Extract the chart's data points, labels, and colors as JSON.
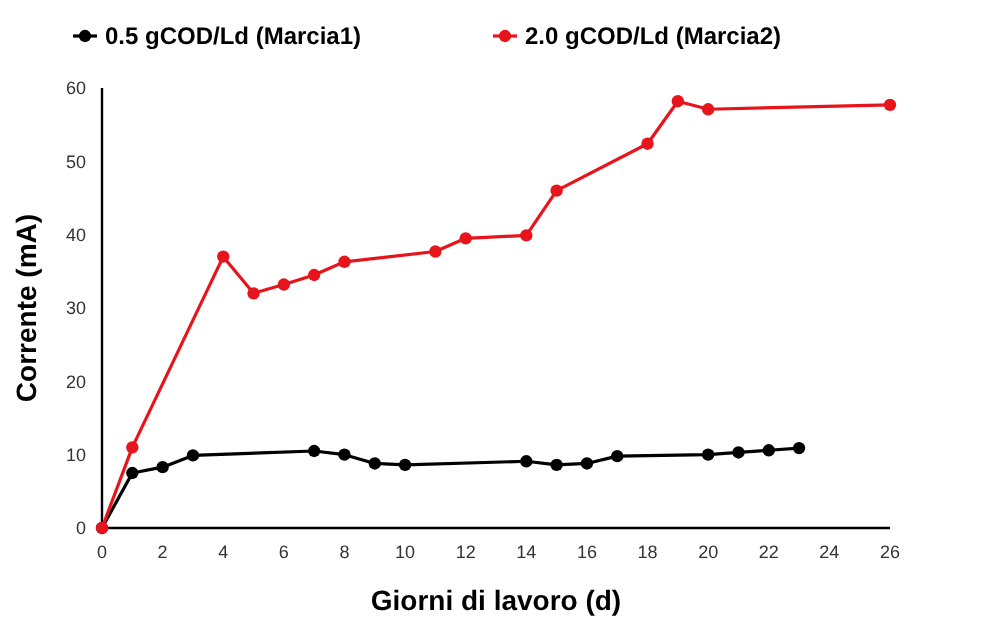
{
  "chart_data": {
    "type": "line",
    "xlabel": "Giorni di lavoro (d)",
    "ylabel": "Corrente (mA)",
    "xlim": [
      0,
      26
    ],
    "xticks": [
      0,
      2,
      4,
      6,
      8,
      10,
      12,
      14,
      16,
      18,
      20,
      22,
      24,
      26
    ],
    "ylim": [
      0,
      60
    ],
    "yticks": [
      0,
      10,
      20,
      30,
      40,
      50,
      60
    ],
    "grid": false,
    "legend": "top",
    "marker": "circle",
    "line_style": "solid",
    "series": [
      {
        "name": "0.5 gCOD/Ld (Marcia1)",
        "color": "#000000",
        "x": [
          0,
          1,
          2,
          3,
          7,
          8,
          9,
          10,
          14,
          15,
          16,
          17,
          20,
          21,
          22,
          23
        ],
        "values": [
          0,
          7.5,
          8.3,
          9.9,
          10.5,
          10.0,
          8.8,
          8.6,
          9.1,
          8.6,
          8.8,
          9.8,
          10.0,
          10.3,
          10.6,
          10.9
        ]
      },
      {
        "name": "2.0 gCOD/Ld (Marcia2)",
        "color": "#e8141b",
        "x": [
          0,
          1,
          4,
          5,
          6,
          7,
          8,
          11,
          12,
          14,
          15,
          18,
          19,
          20,
          26
        ],
        "values": [
          0,
          11,
          37,
          32,
          33.2,
          34.5,
          36.3,
          37.7,
          39.5,
          39.9,
          46,
          52.4,
          58.2,
          57.1,
          57.7
        ]
      }
    ]
  }
}
